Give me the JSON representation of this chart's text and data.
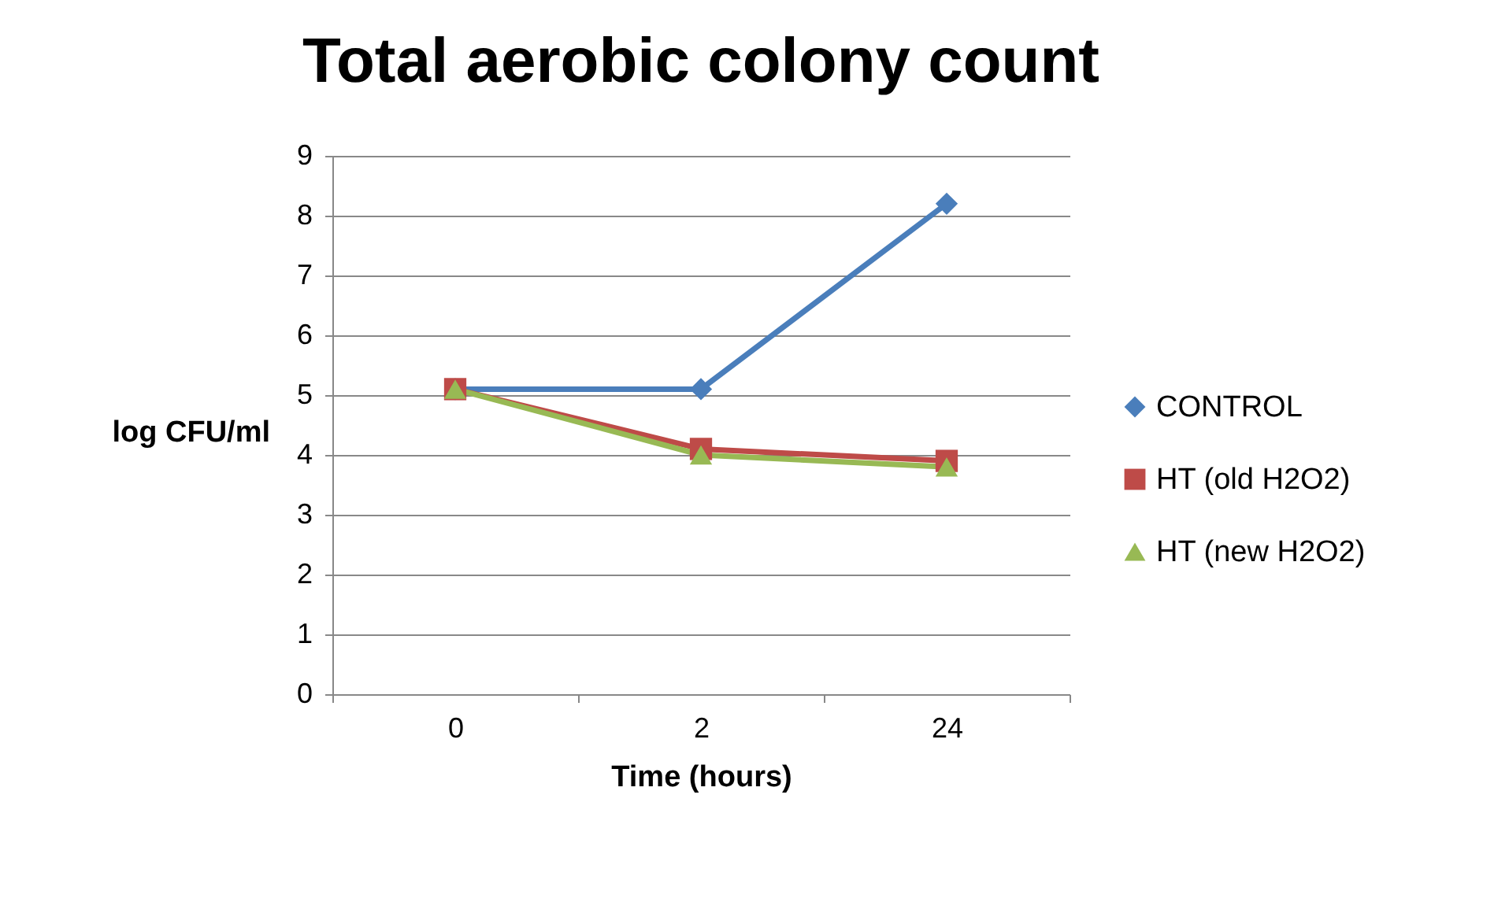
{
  "chart_data": {
    "type": "line",
    "title": "Total aerobic colony count",
    "xlabel": "Time (hours)",
    "ylabel": "log CFU/ml",
    "categories": [
      "0",
      "2",
      "24"
    ],
    "series": [
      {
        "name": "CONTROL",
        "color": "#4a7ebb",
        "marker": "diamond",
        "values": [
          5.1,
          5.1,
          8.2
        ]
      },
      {
        "name": "HT (old H2O2)",
        "color": "#be4b48",
        "marker": "square",
        "values": [
          5.1,
          4.1,
          3.9
        ]
      },
      {
        "name": "HT (new H2O2)",
        "color": "#98b954",
        "marker": "triangle",
        "values": [
          5.1,
          4.0,
          3.8
        ]
      }
    ],
    "ylim": [
      0,
      9
    ],
    "yticks": [
      0,
      1,
      2,
      3,
      4,
      5,
      6,
      7,
      8,
      9
    ],
    "grid": "y",
    "legend": "right",
    "line_style": "solid"
  }
}
